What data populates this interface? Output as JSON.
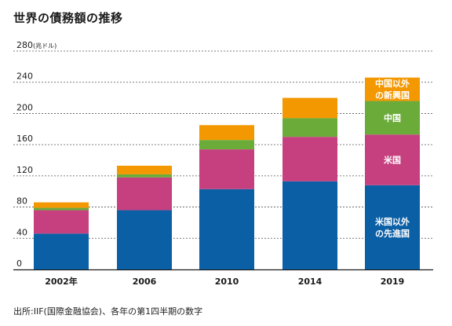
{
  "title": "世界の債務額の推移",
  "source": "出所:IIF(国際金融協会)、各年の第1四半期の数字",
  "colors": {
    "other_developed": "#0b5fa5",
    "us": "#c6407f",
    "china": "#6bab3a",
    "other_emerging": "#f39800"
  },
  "chart_data": {
    "type": "bar",
    "stacked": true,
    "title": "世界の債務額の推移",
    "ylabel": "",
    "unit_label": "(兆ドル)",
    "ylim": [
      0,
      280
    ],
    "yticks": [
      0,
      40,
      80,
      120,
      160,
      200,
      240,
      280
    ],
    "grid": true,
    "categories": [
      "2002年",
      "2006",
      "2010",
      "2014",
      "2019"
    ],
    "series": [
      {
        "key": "other_developed",
        "values": [
          46,
          76,
          103,
          113,
          108
        ]
      },
      {
        "key": "us",
        "values": [
          30,
          42,
          51,
          57,
          65
        ]
      },
      {
        "key": "china",
        "values": [
          3,
          4,
          12,
          24,
          43
        ]
      },
      {
        "key": "other_emerging",
        "values": [
          7,
          11,
          19,
          26,
          30
        ]
      }
    ],
    "annotations": [
      {
        "series": "other_emerging",
        "lines": [
          "中国以外",
          "の新興国"
        ]
      },
      {
        "series": "china",
        "lines": [
          "中国"
        ]
      },
      {
        "series": "us",
        "lines": [
          "米国"
        ]
      },
      {
        "series": "other_developed",
        "lines": [
          "米国以外",
          "の先進国"
        ]
      }
    ]
  }
}
